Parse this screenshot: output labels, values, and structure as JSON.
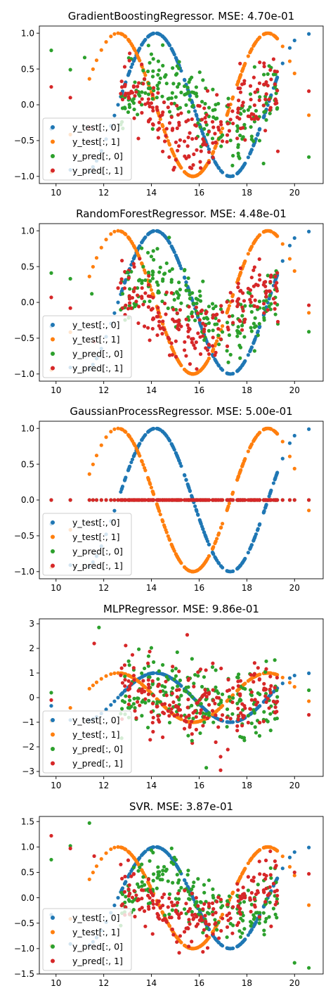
{
  "colors": {
    "y_test_0": "#1f77b4",
    "y_test_1": "#ff7f0e",
    "y_pred_0": "#2ca02c",
    "y_pred_1": "#d62728"
  },
  "legend_labels": [
    "y_test[:, 0]",
    "y_test[:, 1]",
    "y_pred[:, 0]",
    "y_pred[:, 1]"
  ],
  "chart_data": [
    {
      "type": "scatter",
      "title": "GradientBoostingRegressor. MSE: 4.70e-01",
      "model": "GradientBoostingRegressor",
      "mse": "4.70e-01",
      "xlim": [
        9.3,
        21.2
      ],
      "ylim": [
        -1.1,
        1.1
      ],
      "xticks": [
        10,
        12,
        14,
        16,
        18,
        20
      ],
      "xtick_labels": [
        "10",
        "12",
        "14",
        "16",
        "18",
        "20"
      ],
      "yticks": [
        -1.0,
        -0.5,
        0.0,
        0.5,
        1.0
      ],
      "ytick_labels": [
        "−1.0",
        "−0.5",
        "0.0",
        "0.5",
        "1.0"
      ],
      "legend_position": "lower-left",
      "pred": {
        "kind": "noise",
        "spread": 0.25,
        "seed": 11,
        "extras0": [
          [
            9.8,
            0.76
          ],
          [
            10.6,
            0.49
          ],
          [
            11.2,
            0.66
          ],
          [
            12.8,
            -0.33
          ],
          [
            18.7,
            -0.82
          ],
          [
            20.6,
            -0.73
          ]
        ],
        "extras1": [
          [
            9.8,
            0.25
          ],
          [
            10.6,
            0.1
          ],
          [
            11.4,
            -0.33
          ],
          [
            12.9,
            0.28
          ],
          [
            19.3,
            -0.65
          ],
          [
            20.6,
            0.19
          ]
        ]
      }
    },
    {
      "type": "scatter",
      "title": "RandomForestRegressor. MSE: 4.48e-01",
      "model": "RandomForestRegressor",
      "mse": "4.48e-01",
      "xlim": [
        9.3,
        21.2
      ],
      "ylim": [
        -1.1,
        1.1
      ],
      "xticks": [
        10,
        12,
        14,
        16,
        18,
        20
      ],
      "xtick_labels": [
        "10",
        "12",
        "14",
        "16",
        "18",
        "20"
      ],
      "yticks": [
        -1.0,
        -0.5,
        0.0,
        0.5,
        1.0
      ],
      "ytick_labels": [
        "−1.0",
        "−0.5",
        "0.0",
        "0.5",
        "1.0"
      ],
      "legend_position": "lower-left",
      "pred": {
        "kind": "noise",
        "spread": 0.22,
        "seed": 23,
        "extras0": [
          [
            9.8,
            0.41
          ],
          [
            10.6,
            0.33
          ],
          [
            11.5,
            0.12
          ],
          [
            13.0,
            0.42
          ],
          [
            19.3,
            -0.3
          ],
          [
            20.6,
            -0.41
          ]
        ],
        "extras1": [
          [
            9.8,
            0.07
          ],
          [
            10.6,
            -0.08
          ],
          [
            11.6,
            -0.55
          ],
          [
            12.6,
            0.2
          ],
          [
            19.3,
            -0.27
          ],
          [
            20.6,
            -0.04
          ]
        ]
      }
    },
    {
      "type": "scatter",
      "title": "GaussianProcessRegressor. MSE: 5.00e-01",
      "model": "GaussianProcessRegressor",
      "mse": "5.00e-01",
      "xlim": [
        9.3,
        21.2
      ],
      "ylim": [
        -1.1,
        1.1
      ],
      "xticks": [
        10,
        12,
        14,
        16,
        18,
        20
      ],
      "xtick_labels": [
        "10",
        "12",
        "14",
        "16",
        "18",
        "20"
      ],
      "yticks": [
        -1.0,
        -0.5,
        0.0,
        0.5,
        1.0
      ],
      "ytick_labels": [
        "−1.0",
        "−0.5",
        "0.0",
        "0.5",
        "1.0"
      ],
      "legend_position": "lower-left",
      "pred": {
        "kind": "zero"
      }
    },
    {
      "type": "scatter",
      "title": "MLPRegressor. MSE: 9.86e-01",
      "model": "MLPRegressor",
      "mse": "9.86e-01",
      "xlim": [
        9.3,
        21.2
      ],
      "ylim": [
        -3.2,
        3.2
      ],
      "xticks": [
        10,
        12,
        14,
        16,
        18,
        20
      ],
      "xtick_labels": [
        "10",
        "12",
        "14",
        "16",
        "18",
        "20"
      ],
      "yticks": [
        -3,
        -2,
        -1,
        0,
        1,
        2,
        3
      ],
      "ytick_labels": [
        "−3",
        "−2",
        "−1",
        "0",
        "1",
        "2",
        "3"
      ],
      "legend_position": "lower-left",
      "pred": {
        "kind": "noise",
        "spread": 0.75,
        "seed": 37,
        "extras0": [
          [
            11.8,
            2.85
          ],
          [
            15.7,
            -1.75
          ],
          [
            16.3,
            -2.85
          ],
          [
            9.8,
            0.2
          ],
          [
            20.6,
            0.3
          ]
        ],
        "extras1": [
          [
            11.6,
            2.2
          ],
          [
            15.5,
            2.55
          ],
          [
            16.9,
            -2.95
          ],
          [
            16.9,
            -2.4
          ],
          [
            9.8,
            -0.1
          ],
          [
            20.6,
            -0.7
          ]
        ]
      }
    },
    {
      "type": "scatter",
      "title": "SVR. MSE: 3.87e-01",
      "model": "SVR",
      "mse": "3.87e-01",
      "xlim": [
        9.3,
        21.2
      ],
      "ylim": [
        -1.5,
        1.6
      ],
      "xticks": [
        10,
        12,
        14,
        16,
        18,
        20
      ],
      "xtick_labels": [
        "10",
        "12",
        "14",
        "16",
        "18",
        "20"
      ],
      "yticks": [
        -1.5,
        -1.0,
        -0.5,
        0.0,
        0.5,
        1.0,
        1.5
      ],
      "ytick_labels": [
        "−1.5",
        "−1.0",
        "−0.5",
        "0.0",
        "0.5",
        "1.0",
        "1.5"
      ],
      "legend_position": "lower-left",
      "pred": {
        "kind": "noise",
        "spread": 0.28,
        "seed": 53,
        "extras0": [
          [
            11.4,
            1.47
          ],
          [
            9.8,
            0.75
          ],
          [
            10.6,
            1.02
          ],
          [
            20.0,
            -1.28
          ],
          [
            20.6,
            -1.38
          ]
        ],
        "extras1": [
          [
            9.8,
            1.22
          ],
          [
            10.6,
            0.97
          ],
          [
            11.6,
            0.82
          ],
          [
            20.0,
            0.5
          ],
          [
            20.6,
            0.47
          ]
        ]
      }
    }
  ]
}
